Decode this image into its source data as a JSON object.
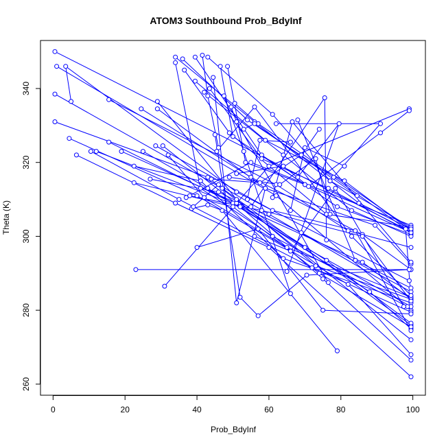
{
  "chart_data": {
    "type": "line",
    "title": "ATOM3 Southbound Prob_BdyInf",
    "xlabel": "Prob_BdyInf",
    "ylabel": "Theta (K)",
    "xlim": [
      -3.5,
      103.5
    ],
    "ylim": [
      257,
      353
    ],
    "x_ticks": [
      0,
      20,
      40,
      60,
      80,
      100
    ],
    "y_ticks": [
      260,
      280,
      300,
      320,
      340
    ],
    "grid": false,
    "legend": "none",
    "series_color": "#0000FF",
    "marker": "open-circle",
    "series": [
      {
        "x": [
          0.5,
          98,
          99.5
        ],
        "y": [
          350.0,
          302.0,
          283.0
        ]
      },
      {
        "x": [
          1,
          62,
          99.5
        ],
        "y": [
          346.0,
          311.0,
          280.0
        ]
      },
      {
        "x": [
          0.5,
          47,
          99.5
        ],
        "y": [
          338.5,
          313.0,
          276.0
        ]
      },
      {
        "x": [
          0.5,
          43,
          99.5
        ],
        "y": [
          331.0,
          316.0,
          272.0
        ]
      },
      {
        "x": [
          5,
          3.5,
          51,
          99
        ],
        "y": [
          336.5,
          346.0,
          312.0,
          288.0
        ]
      },
      {
        "x": [
          4.5,
          40,
          82,
          99.5
        ],
        "y": [
          326.5,
          311.0,
          287.0,
          268.0
        ]
      },
      {
        "x": [
          6.5,
          34,
          60,
          99.5
        ],
        "y": [
          322.0,
          309.0,
          297.0,
          262.0
        ]
      },
      {
        "x": [
          10.5,
          35,
          72,
          99.5
        ],
        "y": [
          323.0,
          310.0,
          291.5,
          279.5
        ]
      },
      {
        "x": [
          12,
          52,
          88,
          99.5
        ],
        "y": [
          323.0,
          308.0,
          285.0,
          275.0
        ]
      },
      {
        "x": [
          15.5,
          62,
          82,
          99.5
        ],
        "y": [
          337.0,
          314.0,
          301.5,
          297.0
        ]
      },
      {
        "x": [
          15.5,
          50,
          86,
          99.5
        ],
        "y": [
          325.5,
          309.0,
          293.0,
          283.0
        ]
      },
      {
        "x": [
          19,
          51,
          76,
          99.5
        ],
        "y": [
          323.0,
          309.0,
          293.5,
          276.5
        ]
      },
      {
        "x": [
          22.5,
          41,
          64,
          99.5
        ],
        "y": [
          319.0,
          315.0,
          294.0,
          282.0
        ]
      },
      {
        "x": [
          22.5,
          50,
          74,
          99.5
        ],
        "y": [
          314.5,
          308.0,
          290.0,
          275.5
        ]
      },
      {
        "x": [
          23,
          99.5
        ],
        "y": [
          291.0,
          291.0
        ]
      },
      {
        "x": [
          24.5,
          55,
          86,
          99.5
        ],
        "y": [
          334.5,
          316.0,
          300.5,
          291.0
        ]
      },
      {
        "x": [
          25,
          43,
          70,
          99.5
        ],
        "y": [
          323.0,
          313.0,
          297.0,
          281.0
        ]
      },
      {
        "x": [
          27,
          46,
          69,
          99.5
        ],
        "y": [
          315.5,
          312.0,
          301.0,
          285.0
        ]
      },
      {
        "x": [
          28.5,
          61,
          84,
          99.5
        ],
        "y": [
          324.5,
          307.0,
          301.5,
          274.5
        ]
      },
      {
        "x": [
          29,
          51,
          73,
          99.5
        ],
        "y": [
          336.5,
          310.0,
          292.0,
          283.0
        ]
      },
      {
        "x": [
          29,
          59,
          89.5,
          99.5
        ],
        "y": [
          334.5,
          313.0,
          303.0,
          292.5
        ]
      },
      {
        "x": [
          30.5,
          52,
          75,
          99.5
        ],
        "y": [
          324.5,
          308.0,
          288.5,
          266.5
        ]
      },
      {
        "x": [
          31,
          60,
          99
        ],
        "y": [
          286.5,
          319.0,
          334.5
        ]
      },
      {
        "x": [
          32,
          42,
          65,
          99.5
        ],
        "y": [
          322.0,
          310.5,
          297.0,
          283.5
        ]
      },
      {
        "x": [
          34,
          56,
          85,
          99.5
        ],
        "y": [
          348.5,
          331.0,
          309.0,
          302.0
        ]
      },
      {
        "x": [
          34,
          41,
          61,
          98.5
        ],
        "y": [
          347.0,
          313.0,
          300.0,
          281.0
        ]
      },
      {
        "x": [
          36,
          54,
          78,
          99.5
        ],
        "y": [
          348.0,
          331.5,
          316.0,
          301.0
        ]
      },
      {
        "x": [
          36.5,
          49,
          76,
          99.5
        ],
        "y": [
          345.0,
          328.0,
          306.0,
          302.5
        ]
      },
      {
        "x": [
          37,
          55,
          99.5
        ],
        "y": [
          310.5,
          320.0,
          303.0
        ]
      },
      {
        "x": [
          38,
          58,
          86,
          99.5
        ],
        "y": [
          311.0,
          307.0,
          300.0,
          282.5
        ]
      },
      {
        "x": [
          38.5,
          43,
          47,
          79
        ],
        "y": [
          307.5,
          308.5,
          307.0,
          269.0
        ]
      },
      {
        "x": [
          39,
          46,
          60,
          99.5
        ],
        "y": [
          308.0,
          314.0,
          306.0,
          283.5
        ]
      },
      {
        "x": [
          39.5,
          59,
          81,
          99.5
        ],
        "y": [
          342.0,
          326.0,
          315.0,
          301.5
        ]
      },
      {
        "x": [
          39.5,
          58,
          79,
          99.5
        ],
        "y": [
          348.5,
          322.0,
          308.0,
          300.5
        ]
      },
      {
        "x": [
          40,
          57,
          75,
          99.5
        ],
        "y": [
          297.0,
          302.0,
          280.0,
          279.0
        ]
      },
      {
        "x": [
          41.5,
          43,
          46
        ],
        "y": [
          349.0,
          338.0,
          324.0
        ]
      },
      {
        "x": [
          42,
          64,
          83,
          99.5
        ],
        "y": [
          339.0,
          322.0,
          307.0,
          300.0
        ]
      },
      {
        "x": [
          43,
          61,
          77,
          99.5
        ],
        "y": [
          348.5,
          333.0,
          315.0,
          302.5
        ]
      },
      {
        "x": [
          43.5,
          58,
          76.5,
          99.5
        ],
        "y": [
          340.0,
          321.0,
          313.0,
          301.0
        ]
      },
      {
        "x": [
          44.5,
          51,
          59
        ],
        "y": [
          343.0,
          282.0,
          313.0
        ]
      },
      {
        "x": [
          45,
          52,
          57,
          70.5,
          99
        ],
        "y": [
          327.5,
          283.5,
          278.5,
          289.5,
          291.0
        ]
      },
      {
        "x": [
          45.5,
          56,
          83,
          99.5
        ],
        "y": [
          323.0,
          335.0,
          300.0,
          284.0
        ]
      },
      {
        "x": [
          46.5,
          50,
          70,
          99.5
        ],
        "y": [
          346.0,
          327.0,
          314.0,
          301.0
        ]
      },
      {
        "x": [
          47.5,
          53,
          66
        ],
        "y": [
          338.0,
          323.0,
          284.5
        ]
      },
      {
        "x": [
          48.5,
          53.5,
          70
        ],
        "y": [
          346.0,
          320.0,
          314.0
        ]
      },
      {
        "x": [
          49.5,
          51,
          76.5
        ],
        "y": [
          335.0,
          331.0,
          287.5
        ]
      },
      {
        "x": [
          50.5,
          57,
          99.5
        ],
        "y": [
          336.0,
          330.5,
          302.0
        ]
      },
      {
        "x": [
          53,
          56,
          84.5
        ],
        "y": [
          329.0,
          330.5,
          311.0
        ]
      },
      {
        "x": [
          54,
          57.5,
          66
        ],
        "y": [
          310.0,
          326.0,
          325.5
        ]
      },
      {
        "x": [
          61,
          66.5,
          99.5
        ],
        "y": [
          310.5,
          331.0,
          293.0
        ]
      },
      {
        "x": [
          68,
          84,
          99.5
        ],
        "y": [
          331.5,
          293.5,
          286.0
        ]
      },
      {
        "x": [
          65,
          79.5,
          68
        ],
        "y": [
          290.5,
          330.5,
          316.0
        ]
      },
      {
        "x": [
          66,
          70,
          81
        ],
        "y": [
          307.0,
          324.0,
          319.0
        ]
      },
      {
        "x": [
          44,
          57.5,
          69,
          74
        ],
        "y": [
          315.5,
          314.5,
          322.0,
          329.0
        ]
      },
      {
        "x": [
          49,
          63,
          73,
          77
        ],
        "y": [
          316.0,
          314.0,
          321.0,
          306.0
        ]
      },
      {
        "x": [
          51,
          64,
          71,
          91,
          99
        ],
        "y": [
          317.0,
          319.0,
          313.5,
          328.0,
          334.0
        ]
      },
      {
        "x": [
          62,
          91,
          77
        ],
        "y": [
          330.5,
          330.5,
          315.0
        ]
      },
      {
        "x": [
          55,
          75.5,
          76
        ],
        "y": [
          308.0,
          337.5,
          299.0
        ]
      },
      {
        "x": [
          56,
          66,
          78.5,
          97.5
        ],
        "y": [
          300.0,
          296.0,
          313.0,
          281.0
        ]
      }
    ]
  }
}
